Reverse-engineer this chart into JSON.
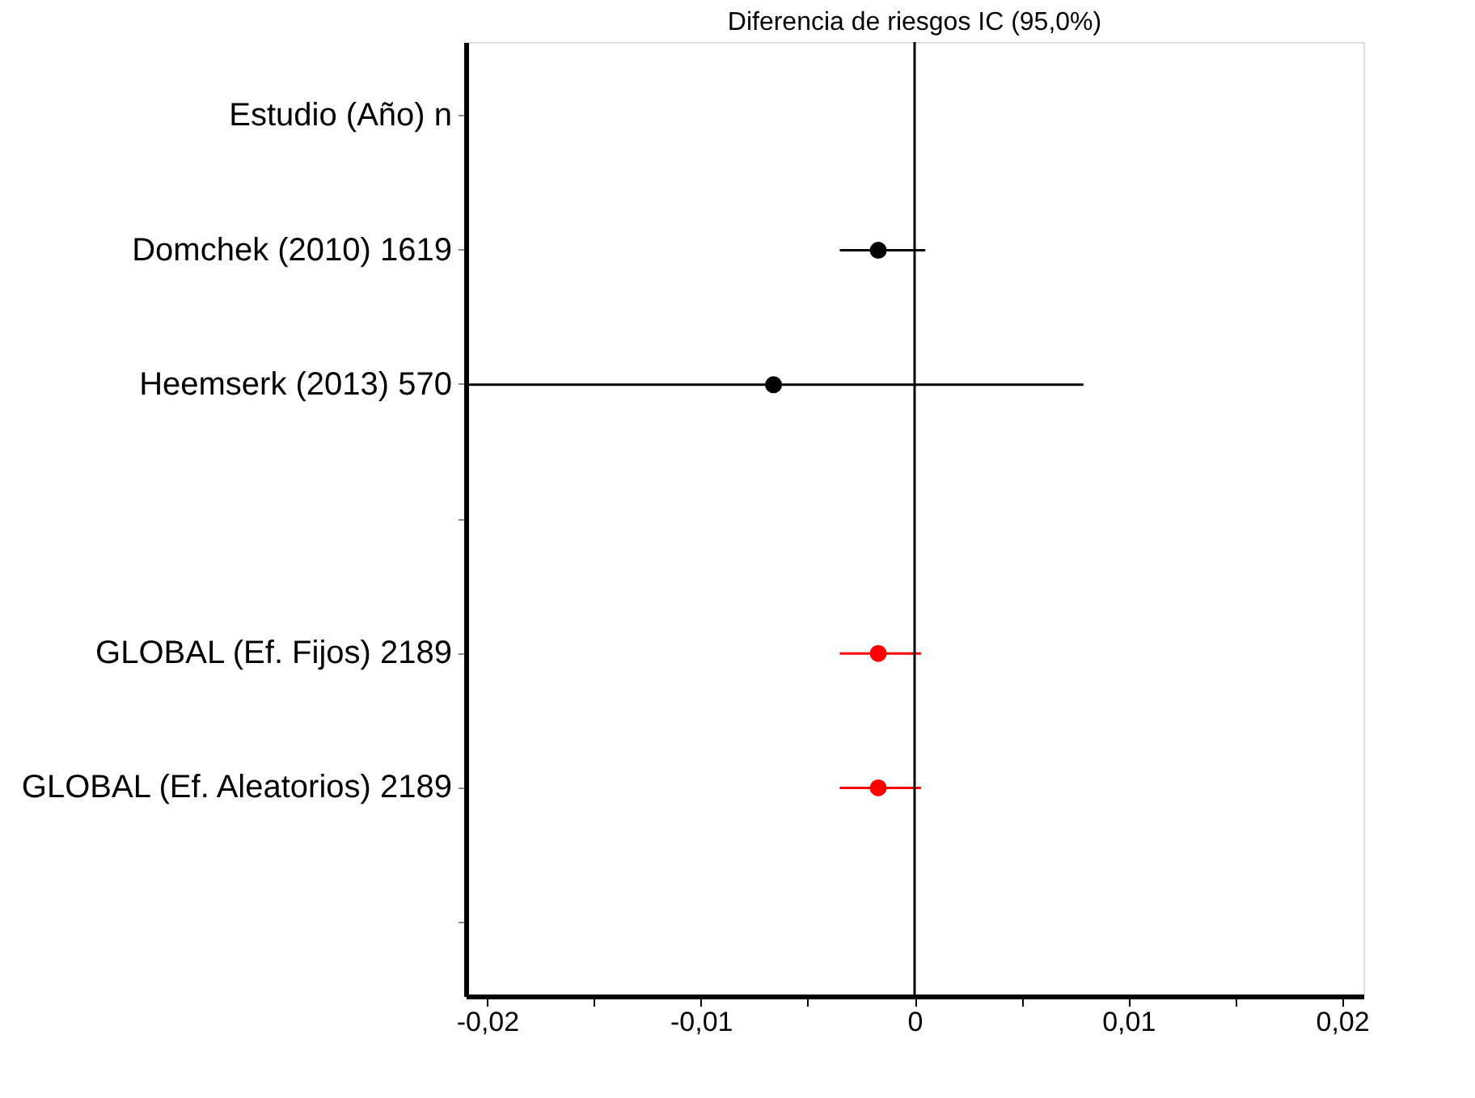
{
  "chart_data": {
    "type": "scatter",
    "orientation": "horizontal",
    "title": "Diferencia de riesgos IC  (95,0%)",
    "categories": [
      "Estudio  (Año)  n",
      "Domchek (2010)  1619",
      "Heemserk (2013)  570",
      null,
      "GLOBAL (Ef. Fijos)  2189",
      "GLOBAL (Ef. Aleatorios)  2189",
      null
    ],
    "values": [
      null,
      -0.0017,
      -0.0066,
      null,
      -0.0017,
      -0.0017,
      null
    ],
    "errors": [
      null,
      [
        -0.0035,
        0.0005
      ],
      [
        -0.021,
        0.0079
      ],
      null,
      [
        -0.0035,
        0.0003
      ],
      [
        -0.0035,
        0.0003
      ],
      null
    ],
    "colors": [
      "#000000",
      "#000000",
      "#000000",
      "#000000",
      "#ff0000",
      "#ff0000",
      "#000000"
    ],
    "xlim": [
      -0.021,
      0.021
    ],
    "xticks": [
      {
        "value": -0.02,
        "label": "-0,02"
      },
      {
        "value": -0.015,
        "label": null
      },
      {
        "value": -0.01,
        "label": "-0,01"
      },
      {
        "value": -0.005,
        "label": null
      },
      {
        "value": 0,
        "label": "0"
      },
      {
        "value": 0.005,
        "label": null
      },
      {
        "value": 0.01,
        "label": "0,01"
      },
      {
        "value": 0.015,
        "label": null
      },
      {
        "value": 0.02,
        "label": "0,02"
      }
    ],
    "ref_lines": [
      {
        "axis": "x",
        "value": 0,
        "color": "#000000"
      }
    ],
    "marker": "circle",
    "grid": false
  }
}
